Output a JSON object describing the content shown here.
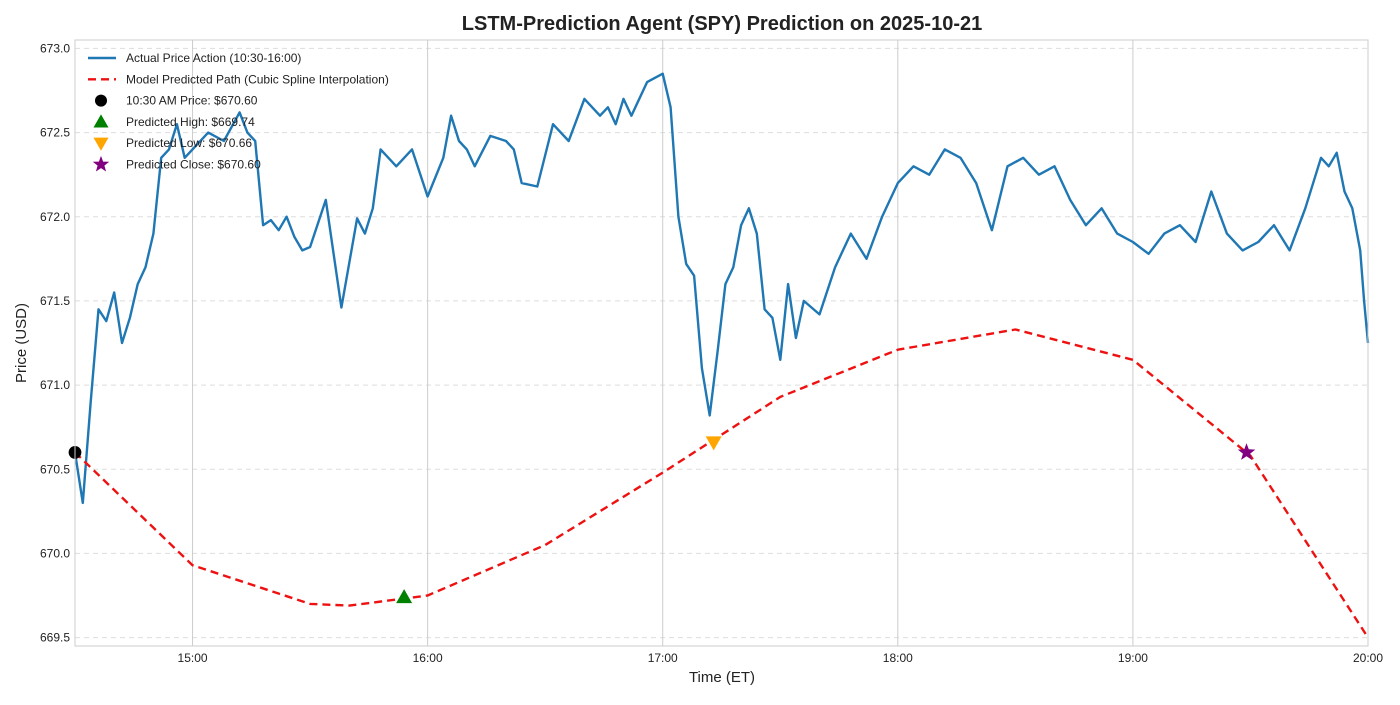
{
  "chart_data": {
    "type": "line",
    "title": "LSTM-Prediction Agent (SPY) Prediction on 2025-10-21",
    "xlabel": "Time (ET)",
    "ylabel": "Price (USD)",
    "xlim": [
      "14:30",
      "20:00"
    ],
    "ylim": [
      669.45,
      673.05
    ],
    "x_ticks": [
      "15:00",
      "16:00",
      "17:00",
      "18:00",
      "19:00",
      "20:00"
    ],
    "y_ticks": [
      669.5,
      670.0,
      670.5,
      671.0,
      671.5,
      672.0,
      672.5,
      673.0
    ],
    "grid": true,
    "legend_position": "top-left",
    "colors": {
      "actual": "#1f77b4",
      "predicted": "#ee1111",
      "start": "#000000",
      "high": "#008000",
      "low": "#ffa500",
      "close": "#800080"
    },
    "series": [
      {
        "name": "Actual Price Action (10:30-16:00)",
        "style": "solid",
        "x": [
          "14:30",
          "14:32",
          "14:34",
          "14:36",
          "14:38",
          "14:40",
          "14:42",
          "14:44",
          "14:46",
          "14:48",
          "14:50",
          "14:52",
          "14:54",
          "14:56",
          "14:58",
          "15:00",
          "15:04",
          "15:08",
          "15:12",
          "15:14",
          "15:16",
          "15:18",
          "15:20",
          "15:22",
          "15:24",
          "15:26",
          "15:28",
          "15:30",
          "15:34",
          "15:38",
          "15:42",
          "15:44",
          "15:46",
          "15:48",
          "15:52",
          "15:56",
          "16:00",
          "16:04",
          "16:06",
          "16:08",
          "16:10",
          "16:12",
          "16:16",
          "16:20",
          "16:22",
          "16:24",
          "16:28",
          "16:32",
          "16:36",
          "16:40",
          "16:44",
          "16:46",
          "16:48",
          "16:50",
          "16:52",
          "16:56",
          "17:00",
          "17:02",
          "17:04",
          "17:06",
          "17:08",
          "17:10",
          "17:12",
          "17:14",
          "17:16",
          "17:18",
          "17:20",
          "17:22",
          "17:24",
          "17:26",
          "17:28",
          "17:30",
          "17:32",
          "17:34",
          "17:36",
          "17:40",
          "17:44",
          "17:48",
          "17:52",
          "17:56",
          "18:00",
          "18:04",
          "18:08",
          "18:12",
          "18:16",
          "18:20",
          "18:24",
          "18:28",
          "18:32",
          "18:36",
          "18:40",
          "18:44",
          "18:48",
          "18:52",
          "18:56",
          "19:00",
          "19:04",
          "19:08",
          "19:12",
          "19:16",
          "19:20",
          "19:24",
          "19:28",
          "19:32",
          "19:36",
          "19:40",
          "19:44",
          "19:48",
          "19:50",
          "19:52",
          "19:54",
          "19:56",
          "19:58",
          "19:59",
          "20:00"
        ],
        "values": [
          670.6,
          670.3,
          670.9,
          671.45,
          671.38,
          671.55,
          671.25,
          671.4,
          671.6,
          671.7,
          671.9,
          672.35,
          672.4,
          672.55,
          672.35,
          672.4,
          672.5,
          672.45,
          672.62,
          672.5,
          672.45,
          671.95,
          671.98,
          671.92,
          672.0,
          671.88,
          671.8,
          671.82,
          672.1,
          671.46,
          671.99,
          671.9,
          672.05,
          672.4,
          672.3,
          672.4,
          672.12,
          672.35,
          672.6,
          672.45,
          672.4,
          672.3,
          672.48,
          672.45,
          672.4,
          672.2,
          672.18,
          672.55,
          672.45,
          672.7,
          672.6,
          672.65,
          672.55,
          672.7,
          672.6,
          672.8,
          672.85,
          672.65,
          672.0,
          671.72,
          671.65,
          671.1,
          670.82,
          671.2,
          671.6,
          671.7,
          671.95,
          672.05,
          671.9,
          671.45,
          671.4,
          671.15,
          671.6,
          671.28,
          671.5,
          671.42,
          671.7,
          671.9,
          671.75,
          672.0,
          672.2,
          672.3,
          672.25,
          672.4,
          672.35,
          672.2,
          671.92,
          672.3,
          672.35,
          672.25,
          672.3,
          672.1,
          671.95,
          672.05,
          671.9,
          671.85,
          671.78,
          671.9,
          671.95,
          671.85,
          672.15,
          671.9,
          671.8,
          671.85,
          671.95,
          671.8,
          672.05,
          672.35,
          672.3,
          672.38,
          672.15,
          672.05,
          671.8,
          671.5,
          671.25
        ]
      },
      {
        "name": "Model Predicted Path (Cubic Spline Interpolation)",
        "style": "dashed",
        "x": [
          "14:30",
          "15:00",
          "15:30",
          "15:40",
          "16:00",
          "16:30",
          "17:00",
          "17:30",
          "18:00",
          "18:30",
          "19:00",
          "19:30",
          "20:00"
        ],
        "values": [
          670.6,
          669.93,
          669.7,
          669.69,
          669.75,
          670.05,
          670.48,
          670.93,
          671.21,
          671.33,
          671.15,
          670.58,
          669.5
        ]
      }
    ],
    "markers": [
      {
        "name": "10:30 AM Price: $670.60",
        "shape": "circle",
        "x": "14:30",
        "y": 670.6
      },
      {
        "name": "Predicted High: $669.74",
        "shape": "triangle-up",
        "x": "15:54",
        "y": 669.74
      },
      {
        "name": "Predicted Low: $670.66",
        "shape": "triangle-down",
        "x": "17:13",
        "y": 670.66
      },
      {
        "name": "Predicted Close: $670.60",
        "shape": "star",
        "x": "19:29",
        "y": 670.6
      }
    ]
  }
}
